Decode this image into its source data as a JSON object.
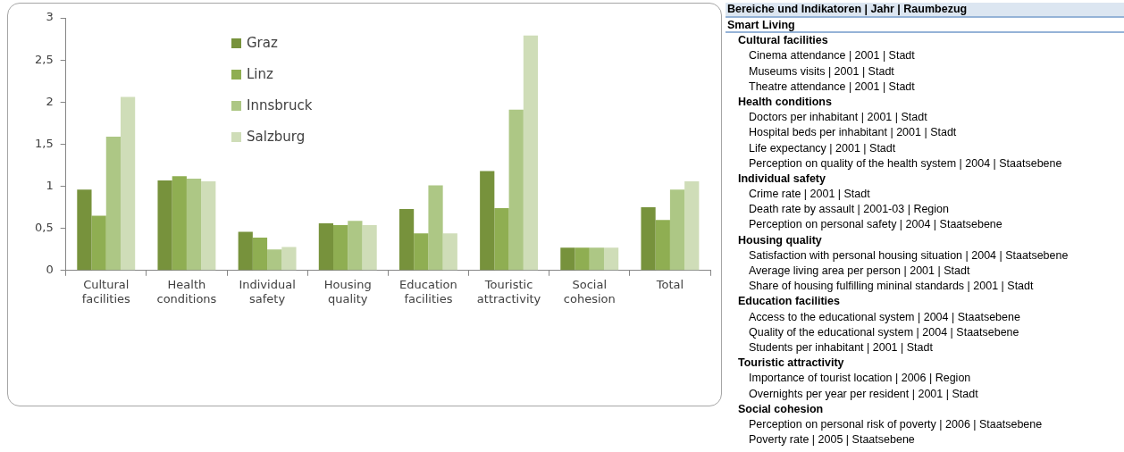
{
  "chart_data": [
    {
      "type": "bar",
      "categories": [
        "Cultural facilities",
        "Health conditions",
        "Individual safety",
        "Housing quality",
        "Education facilities",
        "Touristic attractivity",
        "Social cohesion",
        "Total"
      ],
      "series": [
        {
          "name": "Graz",
          "color": "#77923c",
          "values": [
            0.96,
            1.07,
            0.46,
            0.56,
            0.73,
            1.18,
            0.27,
            0.75
          ]
        },
        {
          "name": "Linz",
          "color": "#8fae52",
          "values": [
            0.65,
            1.12,
            0.39,
            0.54,
            0.44,
            0.74,
            0.27,
            0.6
          ]
        },
        {
          "name": "Innsbruck",
          "color": "#adc785",
          "values": [
            1.59,
            1.09,
            0.25,
            0.59,
            1.01,
            1.91,
            0.27,
            0.96
          ]
        },
        {
          "name": "Salzburg",
          "color": "#cfddb8",
          "values": [
            2.06,
            1.06,
            0.28,
            0.54,
            0.44,
            2.79,
            0.27,
            1.06
          ]
        }
      ],
      "ylim": [
        0,
        3
      ],
      "yticks": [
        {
          "value": 0,
          "label": "0"
        },
        {
          "value": 0.5,
          "label": "0,5"
        },
        {
          "value": 1,
          "label": "1"
        },
        {
          "value": 1.5,
          "label": "1,5"
        },
        {
          "value": 2,
          "label": "2"
        },
        {
          "value": 2.5,
          "label": "2,5"
        },
        {
          "value": 3,
          "label": "3"
        }
      ],
      "grid": false,
      "legend": "top"
    },
    {
      "type": "other",
      "title": "Bereiche und Indikatoren | Jahr | Raumbezug",
      "subtitle": "Smart Living",
      "annotations": [
        "Cultural facilities",
        "Cinema attendance | 2001 | Stadt",
        "Museums visits | 2001 | Stadt",
        "Theatre attendance | 2001 | Stadt",
        "Health conditions",
        "Doctors per inhabitant | 2001 | Stadt",
        "Hospital beds per inhabitant | 2001 | Stadt",
        "Life expectancy | 2001 | Stadt",
        "Perception on quality of the health system | 2004 | Staatsebene",
        "Individual safety",
        "Crime rate | 2001 | Stadt",
        "Death rate by assault | 2001-03 | Region",
        "Perception on personal safety | 2004 | Staatsebene",
        "Housing quality",
        "Satisfaction with personal housing situation | 2004 | Staatsebene",
        "Average living area per person | 2001 | Stadt",
        "Share of housing fulfilling mininal standards | 2001 | Stadt",
        "Education facilities",
        "Access to the educational system | 2004 | Staatsebene",
        "Quality of the educational system | 2004 | Staatsebene",
        "Students per inhabitant | 2001 | Stadt",
        "Touristic attractivity",
        "Importance of tourist location | 2006 | Region",
        "Overnights per year per resident | 2001 | Stadt",
        "Social cohesion",
        "Perception on personal risk of poverty | 2006 | Staatsebene",
        "Poverty rate | 2005 | Staatsebene"
      ]
    }
  ]
}
